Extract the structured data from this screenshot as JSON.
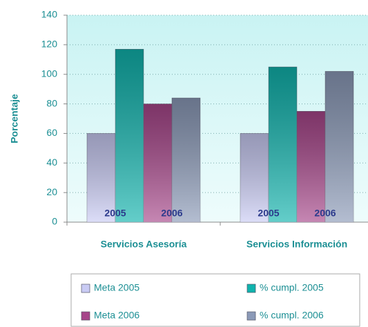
{
  "chart_data": {
    "type": "bar",
    "ylabel": "Porcentaje",
    "categories": [
      "Servicios Asesoría",
      "Servicios Información"
    ],
    "series": [
      {
        "name": "Meta 2005",
        "color": "#c9cbf4",
        "values": [
          60,
          60
        ]
      },
      {
        "name": "% cumpl. 2005",
        "color": "#10b3ad",
        "values": [
          117,
          105
        ]
      },
      {
        "name": "Meta 2006",
        "color": "#a7468a",
        "values": [
          80,
          75
        ]
      },
      {
        "name": "% cumpl. 2006",
        "color": "#8b9ab8",
        "values": [
          84,
          102
        ]
      }
    ],
    "annotations": [
      [
        "2005",
        "2006"
      ],
      [
        "2005",
        "2006"
      ]
    ],
    "ylim": [
      0,
      140
    ],
    "yticks": [
      0,
      20,
      40,
      60,
      80,
      100,
      120,
      140
    ],
    "grid": true
  }
}
